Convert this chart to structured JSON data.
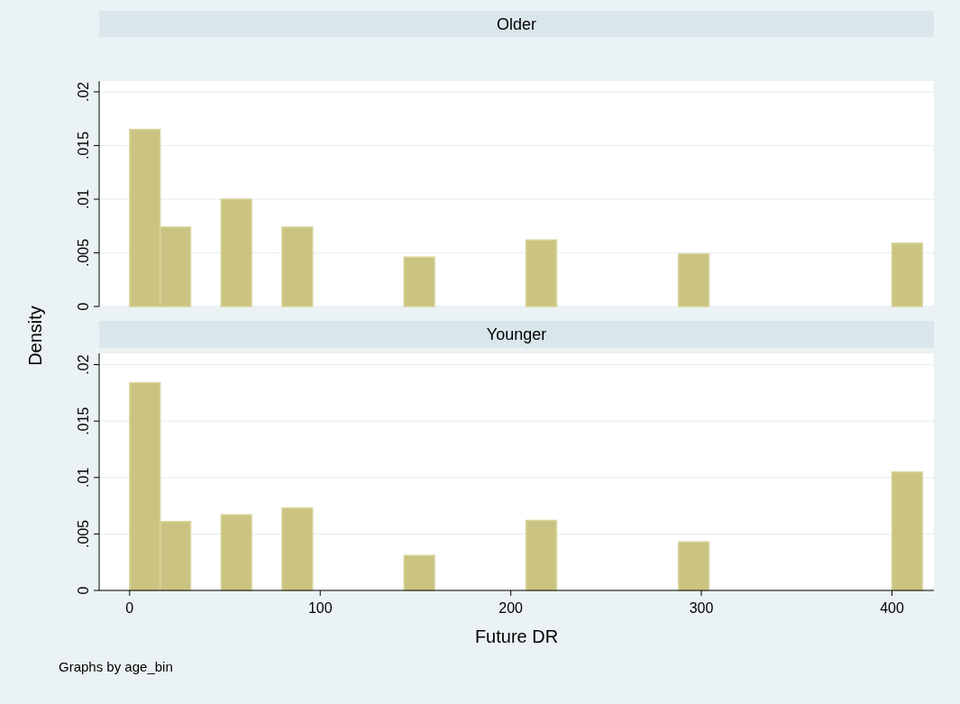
{
  "chart_data": [
    {
      "type": "histogram",
      "title": "Older",
      "bins": [
        0,
        16,
        32,
        48,
        64,
        80,
        96,
        112,
        128,
        144,
        160,
        176,
        192,
        208,
        224,
        240,
        256,
        272,
        288,
        304,
        320,
        336,
        352,
        368,
        384,
        400,
        416
      ],
      "values": [
        0.0165,
        0.0074,
        0,
        0.01,
        0,
        0.0074,
        0,
        0,
        0,
        0.0046,
        0,
        0,
        0,
        0.0062,
        0,
        0,
        0,
        0,
        0.0049,
        0,
        0,
        0,
        0,
        0,
        0,
        0.0059
      ],
      "color": "#cbc381",
      "xlim": [
        -16,
        422
      ],
      "ylim": [
        0,
        0.021
      ],
      "yticks": [
        0,
        {
          "value": 0.005,
          "label": ".005"
        },
        {
          "value": 0.01,
          "label": ".01"
        },
        {
          "value": 0.015,
          "label": ".015"
        },
        {
          "value": 0.02,
          "label": ".02"
        }
      ],
      "grid": "y",
      "tick_labels": "y"
    },
    {
      "type": "histogram",
      "title": "Younger",
      "xlabel": "Future DR",
      "ylabel": "Density",
      "annotations": [
        "Graphs by age_bin"
      ],
      "bins": [
        0,
        16,
        32,
        48,
        64,
        80,
        96,
        112,
        128,
        144,
        160,
        176,
        192,
        208,
        224,
        240,
        256,
        272,
        288,
        304,
        320,
        336,
        352,
        368,
        384,
        400,
        416
      ],
      "values": [
        0.0184,
        0.0061,
        0,
        0.0067,
        0,
        0.0073,
        0,
        0,
        0,
        0.0031,
        0,
        0,
        0,
        0.0062,
        0,
        0,
        0,
        0,
        0.0043,
        0,
        0,
        0,
        0,
        0,
        0,
        0.0105
      ],
      "color": "#cbc381",
      "xlim": [
        -16,
        422
      ],
      "xticks": [
        0,
        100,
        200,
        300,
        400
      ],
      "ylim": [
        0,
        0.021
      ],
      "yticks": [
        0,
        {
          "value": 0.005,
          "label": ".005"
        },
        {
          "value": 0.01,
          "label": ".01"
        },
        {
          "value": 0.015,
          "label": ".015"
        },
        {
          "value": 0.02,
          "label": ".02"
        }
      ],
      "grid": "y"
    }
  ]
}
